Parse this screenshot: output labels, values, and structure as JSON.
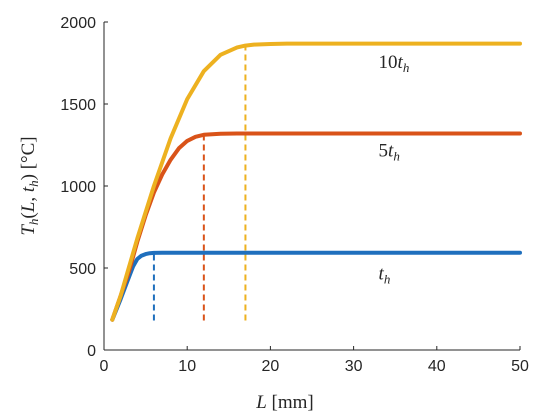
{
  "chart_data": {
    "type": "line",
    "xlabel": "L [mm]",
    "ylabel": "T_h(L, t_h) [°C]",
    "xlim": [
      0,
      50
    ],
    "ylim": [
      0,
      2000
    ],
    "xticks": [
      0,
      10,
      20,
      30,
      40,
      50
    ],
    "yticks": [
      0,
      500,
      1000,
      1500,
      2000
    ],
    "grid": false,
    "series": [
      {
        "name": "t_h",
        "color": "#1f6fbd",
        "x": [
          1,
          2,
          3,
          3.5,
          4,
          4.5,
          5,
          5.5,
          6,
          7,
          10,
          20,
          30,
          40,
          50
        ],
        "y": [
          185,
          310,
          445,
          510,
          555,
          575,
          585,
          590,
          592,
          593,
          593,
          593,
          593,
          593,
          593
        ]
      },
      {
        "name": "5t_h",
        "color": "#d95319",
        "x": [
          1,
          2,
          3,
          4,
          5,
          6,
          7,
          8,
          9,
          10,
          11,
          12,
          13,
          14,
          16,
          20,
          30,
          40,
          50
        ],
        "y": [
          185,
          330,
          480,
          660,
          820,
          960,
          1070,
          1160,
          1230,
          1275,
          1300,
          1312,
          1316,
          1318,
          1320,
          1320,
          1320,
          1320,
          1320
        ]
      },
      {
        "name": "10t_h",
        "color": "#edb120",
        "x": [
          1,
          2,
          4,
          6,
          8,
          10,
          12,
          14,
          16,
          17,
          18,
          20,
          22,
          25,
          30,
          40,
          50
        ],
        "y": [
          185,
          330,
          680,
          1000,
          1290,
          1530,
          1700,
          1800,
          1845,
          1856,
          1862,
          1866,
          1868,
          1868,
          1868,
          1868,
          1868
        ]
      }
    ],
    "markers": [
      {
        "x": 6,
        "y": 592,
        "color": "#1f6fbd"
      },
      {
        "x": 12,
        "y": 1312,
        "color": "#d95319"
      },
      {
        "x": 17,
        "y": 1856,
        "color": "#edb120"
      }
    ],
    "annotations": [
      {
        "base": "10t",
        "sub": "h",
        "x": 33,
        "y": 1720
      },
      {
        "base": "5t",
        "sub": "h",
        "x": 33,
        "y": 1180
      },
      {
        "base": "t",
        "sub": "h",
        "x": 33,
        "y": 430
      }
    ]
  }
}
